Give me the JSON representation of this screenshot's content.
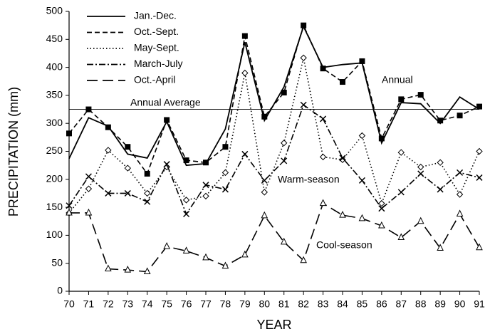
{
  "chart_data": {
    "type": "line",
    "x_label": "YEAR",
    "y_label": "PRECIPITATION (mm)",
    "x": [
      70,
      71,
      72,
      73,
      74,
      75,
      76,
      77,
      78,
      79,
      80,
      81,
      82,
      83,
      84,
      85,
      86,
      87,
      88,
      89,
      90,
      91
    ],
    "xlim": [
      70,
      91
    ],
    "xticks": [
      70,
      71,
      72,
      73,
      74,
      75,
      76,
      77,
      78,
      79,
      80,
      81,
      82,
      83,
      84,
      85,
      86,
      87,
      88,
      89,
      90,
      91
    ],
    "ylim": [
      0,
      500
    ],
    "yticks": [
      0,
      50,
      100,
      150,
      200,
      250,
      300,
      350,
      400,
      450,
      500
    ],
    "grid": false,
    "legend": "top-left",
    "series": [
      {
        "name": "Jan.-Dec.",
        "color": "#000000",
        "dash": "solid",
        "marker": "none",
        "values": [
          237,
          310,
          295,
          245,
          238,
          303,
          225,
          228,
          290,
          445,
          305,
          365,
          473,
          400,
          405,
          408,
          265,
          337,
          335,
          300,
          347,
          325
        ]
      },
      {
        "name": "Oct.-Sept.",
        "color": "#000000",
        "dash": "dashed",
        "marker": "square",
        "values": [
          282,
          325,
          293,
          258,
          210,
          306,
          234,
          230,
          258,
          456,
          312,
          355,
          475,
          398,
          374,
          411,
          273,
          343,
          351,
          305,
          314,
          330
        ]
      },
      {
        "name": "May-Sept.",
        "color": "#000000",
        "dash": "dotted",
        "marker": "diamond",
        "values": [
          140,
          183,
          252,
          220,
          175,
          222,
          163,
          170,
          212,
          390,
          177,
          265,
          417,
          240,
          235,
          278,
          157,
          248,
          222,
          230,
          173,
          250
        ]
      },
      {
        "name": "March-July",
        "color": "#000000",
        "dash": "dashdot",
        "marker": "x",
        "values": [
          153,
          205,
          175,
          175,
          160,
          227,
          138,
          190,
          182,
          245,
          198,
          233,
          333,
          308,
          238,
          198,
          148,
          177,
          210,
          182,
          212,
          203
        ]
      },
      {
        "name": "Oct.-April",
        "color": "#000000",
        "dash": "longdash",
        "marker": "triangle",
        "values": [
          140,
          140,
          40,
          38,
          35,
          80,
          72,
          60,
          45,
          65,
          135,
          88,
          55,
          157,
          136,
          130,
          117,
          96,
          125,
          77,
          138,
          78
        ]
      }
    ],
    "reference_line": {
      "value": 325,
      "label": "Annual Average"
    },
    "annotations": [
      "Annual",
      "Warm-season",
      "Cool-season"
    ]
  }
}
